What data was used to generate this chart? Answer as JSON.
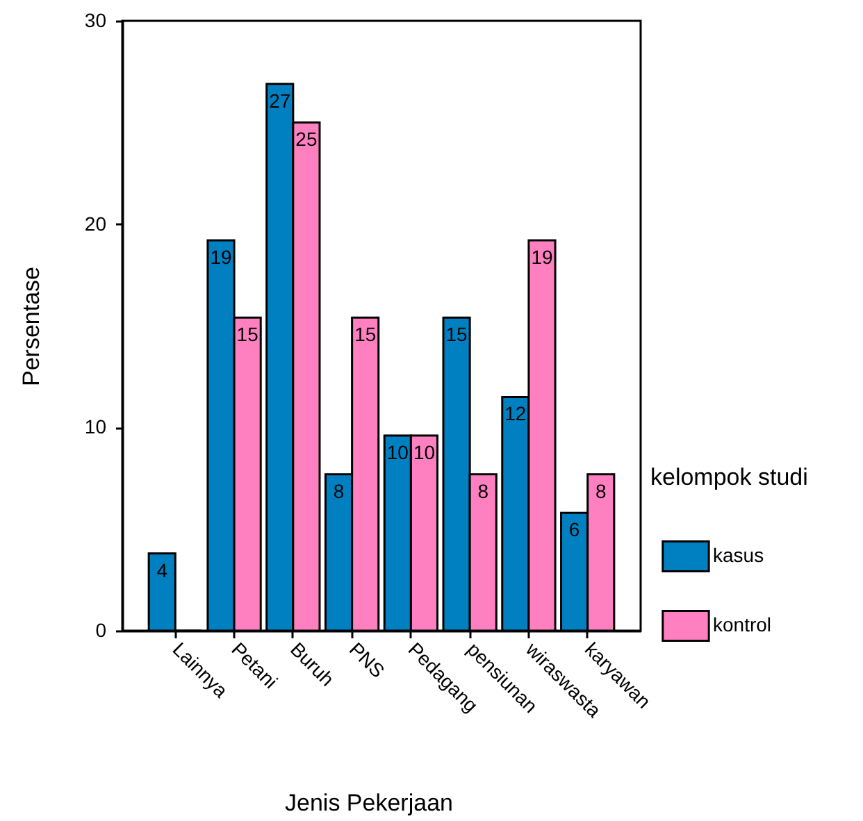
{
  "chart_data": {
    "type": "bar",
    "xlabel": "Jenis Pekerjaan",
    "ylabel": "Persentase",
    "legend_title": "kelompok studi",
    "categories": [
      "Lainnya",
      "Petani",
      "Buruh",
      "PNS",
      "Pedagang",
      "pensiunan",
      "wiraswasta",
      "karyawan"
    ],
    "series": [
      {
        "name": "kasus",
        "color": "#0080c0",
        "values": [
          3.8,
          19.2,
          26.9,
          7.7,
          9.6,
          15.4,
          11.5,
          5.8
        ],
        "value_labels": [
          "4",
          "19",
          "27",
          "8",
          "10",
          "15",
          "12",
          "6"
        ]
      },
      {
        "name": "kontrol",
        "color": "#ff80c0",
        "values": [
          0,
          15.4,
          25,
          15.4,
          9.6,
          7.7,
          19.2,
          7.7
        ],
        "value_labels": [
          null,
          "15",
          "25",
          "15",
          "10",
          "8",
          "19",
          "8"
        ]
      }
    ],
    "ylim": [
      0,
      30
    ],
    "yticks": [
      0,
      10,
      20,
      30
    ],
    "grid": false,
    "legend": "right"
  }
}
